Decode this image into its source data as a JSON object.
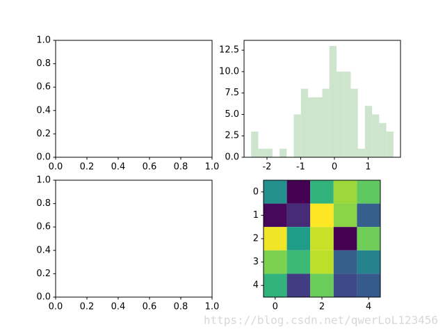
{
  "chart_data": [
    {
      "type": "axes",
      "xlim": [
        0,
        1
      ],
      "ylim": [
        0,
        1
      ],
      "xticks": [
        {
          "value": 0,
          "label": "0.0"
        },
        {
          "value": 0.2,
          "label": "0.2"
        },
        {
          "value": 0.4,
          "label": "0.4"
        },
        {
          "value": 0.6,
          "label": "0.6"
        },
        {
          "value": 0.8,
          "label": "0.8"
        },
        {
          "value": 1,
          "label": "1.0"
        }
      ],
      "yticks": [
        {
          "value": 0,
          "label": "0.0"
        },
        {
          "value": 0.2,
          "label": "0.2"
        },
        {
          "value": 0.4,
          "label": "0.4"
        },
        {
          "value": 0.6,
          "label": "0.6"
        },
        {
          "value": 0.8,
          "label": "0.8"
        },
        {
          "value": 1,
          "label": "1.0"
        }
      ]
    },
    {
      "type": "histogram",
      "bins": [
        -2.47,
        -2.259,
        -2.048,
        -1.837,
        -1.626,
        -1.415,
        -1.204,
        -0.993,
        -0.782,
        -0.571,
        -0.36,
        -0.149,
        0.062,
        0.273,
        0.484,
        0.695,
        0.906,
        1.117,
        1.328,
        1.539,
        1.75
      ],
      "values": [
        3,
        1,
        1,
        0,
        1,
        0,
        5,
        8,
        7,
        7,
        8,
        13,
        10,
        10,
        8,
        1,
        6,
        5,
        4,
        3
      ],
      "color": "#cce5cc",
      "xlim": [
        -2.68,
        1.96
      ],
      "ylim": [
        0,
        13.65
      ],
      "xticks": [
        -2,
        -1,
        0,
        1
      ],
      "yticks": [
        {
          "value": 0,
          "label": "0.0"
        },
        {
          "value": 2.5,
          "label": "2.5"
        },
        {
          "value": 5,
          "label": "5.0"
        },
        {
          "value": 7.5,
          "label": "7.5"
        },
        {
          "value": 10,
          "label": "10.0"
        },
        {
          "value": 12.5,
          "label": "12.5"
        }
      ]
    },
    {
      "type": "axes",
      "xlim": [
        0,
        1
      ],
      "ylim": [
        0,
        1
      ],
      "xticks": [
        {
          "value": 0,
          "label": "0.0"
        },
        {
          "value": 0.2,
          "label": "0.2"
        },
        {
          "value": 0.4,
          "label": "0.4"
        },
        {
          "value": 0.6,
          "label": "0.6"
        },
        {
          "value": 0.8,
          "label": "0.8"
        },
        {
          "value": 1,
          "label": "1.0"
        }
      ],
      "yticks": [
        {
          "value": 0,
          "label": "0.0"
        },
        {
          "value": 0.2,
          "label": "0.2"
        },
        {
          "value": 0.4,
          "label": "0.4"
        },
        {
          "value": 0.6,
          "label": "0.6"
        },
        {
          "value": 0.8,
          "label": "0.8"
        },
        {
          "value": 1,
          "label": "1.0"
        }
      ]
    },
    {
      "type": "heatmap",
      "colormap": "viridis",
      "values": [
        [
          0.5,
          0.0,
          0.65,
          0.85,
          0.75
        ],
        [
          0.02,
          0.12,
          1.0,
          0.82,
          0.3
        ],
        [
          0.98,
          0.55,
          0.92,
          0.0,
          0.78
        ],
        [
          0.8,
          0.68,
          0.9,
          0.3,
          0.45
        ],
        [
          0.65,
          0.18,
          0.77,
          0.22,
          0.28
        ]
      ],
      "xlim": [
        -0.5,
        4.5
      ],
      "ylim": [
        4.5,
        -0.5
      ],
      "xticks": [
        0,
        2,
        4
      ],
      "yticks": [
        0,
        1,
        2,
        3,
        4
      ]
    }
  ],
  "watermark": "https://blog.csdn.net/qwerLoL123456"
}
